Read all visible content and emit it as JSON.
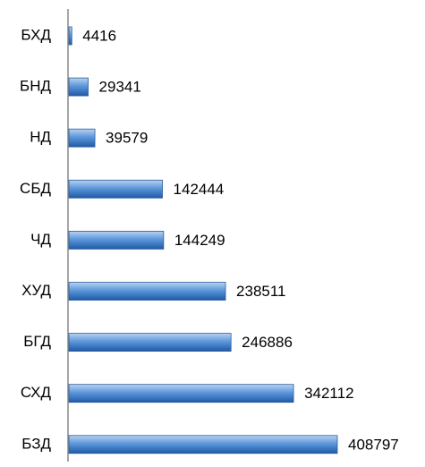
{
  "chart_data": {
    "type": "bar",
    "orientation": "horizontal",
    "categories": [
      "БХД",
      "БНД",
      "НД",
      "СБД",
      "ЧД",
      "ХУД",
      "БГД",
      "СХД",
      "БЗД"
    ],
    "values": [
      4416,
      29341,
      39579,
      142444,
      144249,
      238511,
      246886,
      342112,
      408797
    ],
    "color": "#3f7fcf"
  }
}
